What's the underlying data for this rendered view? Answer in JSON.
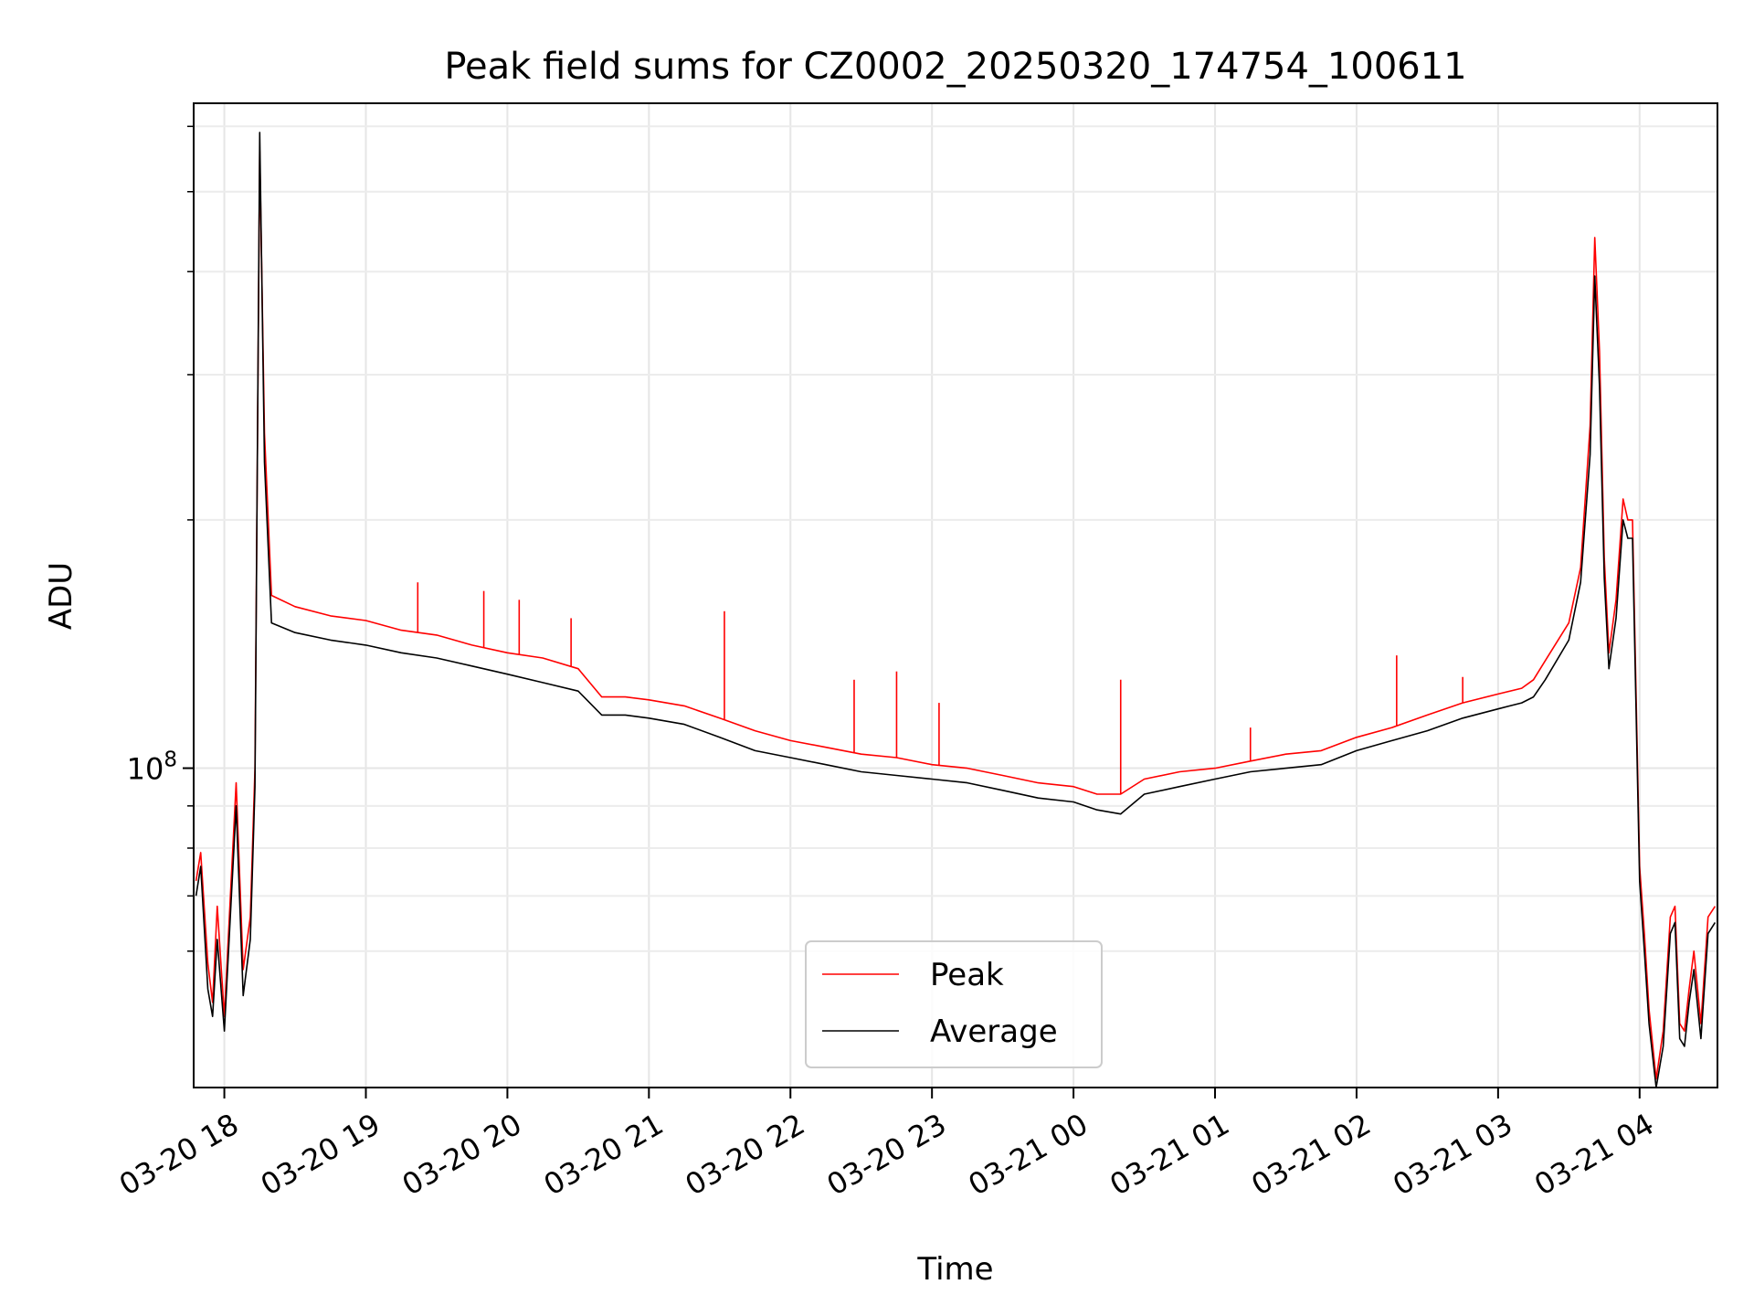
{
  "chart_data": {
    "type": "line",
    "title": "Peak field sums for CZ0002_20250320_174754_100611",
    "xlabel": "Time",
    "ylabel": "ADU",
    "x_tick_labels": [
      "03-20 18",
      "03-20 19",
      "03-20 20",
      "03-20 21",
      "03-20 22",
      "03-20 23",
      "03-21 00",
      "03-21 01",
      "03-21 02",
      "03-21 03",
      "03-21 04"
    ],
    "x_ticks": [
      "2025-03-20 18:00",
      "2025-03-20 19:00",
      "2025-03-20 20:00",
      "2025-03-20 21:00",
      "2025-03-20 22:00",
      "2025-03-20 23:00",
      "2025-03-21 00:00",
      "2025-03-21 01:00",
      "2025-03-21 02:00",
      "2025-03-21 03:00",
      "2025-03-21 04:00"
    ],
    "xlim": [
      "2025-03-20 17:47",
      "2025-03-21 04:33"
    ],
    "y_scale": "log",
    "ylim": [
      41000000,
      640000000
    ],
    "y_major_ticks": [
      {
        "value": 100000000,
        "base": "10",
        "exp": "8"
      }
    ],
    "y_minor_ticks": [
      60000000,
      70000000,
      80000000,
      90000000,
      200000000,
      300000000,
      400000000,
      500000000,
      600000000
    ],
    "grid": true,
    "legend": {
      "position": "bottom-center"
    },
    "series": [
      {
        "name": "Peak",
        "color": "#ff0000",
        "points": [
          [
            "2025-03-20 17:48",
            73000000
          ],
          [
            "2025-03-20 17:50",
            79000000
          ],
          [
            "2025-03-20 17:53",
            58000000
          ],
          [
            "2025-03-20 17:55",
            52000000
          ],
          [
            "2025-03-20 17:57",
            68000000
          ],
          [
            "2025-03-20 18:00",
            50000000
          ],
          [
            "2025-03-20 18:03",
            74000000
          ],
          [
            "2025-03-20 18:05",
            96000000
          ],
          [
            "2025-03-20 18:08",
            57000000
          ],
          [
            "2025-03-20 18:11",
            66000000
          ],
          [
            "2025-03-20 18:13",
            100000000
          ],
          [
            "2025-03-20 18:15",
            560000000
          ],
          [
            "2025-03-20 18:17",
            255000000
          ],
          [
            "2025-03-20 18:20",
            162000000
          ],
          [
            "2025-03-20 18:30",
            157000000
          ],
          [
            "2025-03-20 18:45",
            153000000
          ],
          [
            "2025-03-20 19:00",
            151000000
          ],
          [
            "2025-03-20 19:15",
            147000000
          ],
          [
            "2025-03-20 19:30",
            145000000
          ],
          [
            "2025-03-20 19:45",
            141000000
          ],
          [
            "2025-03-20 20:00",
            138000000
          ],
          [
            "2025-03-20 20:15",
            136000000
          ],
          [
            "2025-03-20 20:30",
            132000000
          ],
          [
            "2025-03-20 20:40",
            122000000
          ],
          [
            "2025-03-20 20:50",
            122000000
          ],
          [
            "2025-03-20 21:00",
            121000000
          ],
          [
            "2025-03-20 21:15",
            119000000
          ],
          [
            "2025-03-20 21:30",
            115000000
          ],
          [
            "2025-03-20 21:45",
            111000000
          ],
          [
            "2025-03-20 22:00",
            108000000
          ],
          [
            "2025-03-20 22:15",
            106000000
          ],
          [
            "2025-03-20 22:30",
            104000000
          ],
          [
            "2025-03-20 22:45",
            103000000
          ],
          [
            "2025-03-20 23:00",
            101000000
          ],
          [
            "2025-03-20 23:15",
            100000000
          ],
          [
            "2025-03-20 23:30",
            98000000
          ],
          [
            "2025-03-20 23:45",
            96000000
          ],
          [
            "2025-03-21 00:00",
            95000000
          ],
          [
            "2025-03-21 00:10",
            93000000
          ],
          [
            "2025-03-21 00:20",
            93000000
          ],
          [
            "2025-03-21 00:30",
            97000000
          ],
          [
            "2025-03-21 00:45",
            99000000
          ],
          [
            "2025-03-21 01:00",
            100000000
          ],
          [
            "2025-03-21 01:15",
            102000000
          ],
          [
            "2025-03-21 01:30",
            104000000
          ],
          [
            "2025-03-21 01:45",
            105000000
          ],
          [
            "2025-03-21 02:00",
            109000000
          ],
          [
            "2025-03-21 02:15",
            112000000
          ],
          [
            "2025-03-21 02:30",
            116000000
          ],
          [
            "2025-03-21 02:45",
            120000000
          ],
          [
            "2025-03-21 03:00",
            123000000
          ],
          [
            "2025-03-21 03:10",
            125000000
          ],
          [
            "2025-03-21 03:15",
            128000000
          ],
          [
            "2025-03-21 03:20",
            135000000
          ],
          [
            "2025-03-21 03:30",
            150000000
          ],
          [
            "2025-03-21 03:35",
            175000000
          ],
          [
            "2025-03-21 03:39",
            260000000
          ],
          [
            "2025-03-21 03:41",
            440000000
          ],
          [
            "2025-03-21 03:43",
            320000000
          ],
          [
            "2025-03-21 03:45",
            180000000
          ],
          [
            "2025-03-21 03:47",
            138000000
          ],
          [
            "2025-03-21 03:50",
            160000000
          ],
          [
            "2025-03-21 03:53",
            212000000
          ],
          [
            "2025-03-21 03:55",
            200000000
          ],
          [
            "2025-03-21 03:57",
            200000000
          ],
          [
            "2025-03-21 04:00",
            76000000
          ],
          [
            "2025-03-21 04:02",
            63000000
          ],
          [
            "2025-03-21 04:04",
            51000000
          ],
          [
            "2025-03-21 04:07",
            42000000
          ],
          [
            "2025-03-21 04:10",
            48000000
          ],
          [
            "2025-03-21 04:13",
            66000000
          ],
          [
            "2025-03-21 04:15",
            68000000
          ],
          [
            "2025-03-21 04:17",
            49000000
          ],
          [
            "2025-03-21 04:19",
            48000000
          ],
          [
            "2025-03-21 04:21",
            54000000
          ],
          [
            "2025-03-21 04:23",
            60000000
          ],
          [
            "2025-03-21 04:26",
            49000000
          ],
          [
            "2025-03-21 04:29",
            66000000
          ],
          [
            "2025-03-21 04:32",
            68000000
          ]
        ],
        "spikes": [
          [
            "2025-03-20 19:22",
            168000000
          ],
          [
            "2025-03-20 19:50",
            164000000
          ],
          [
            "2025-03-20 20:05",
            160000000
          ],
          [
            "2025-03-20 20:27",
            152000000
          ],
          [
            "2025-03-20 21:32",
            155000000
          ],
          [
            "2025-03-20 22:27",
            128000000
          ],
          [
            "2025-03-20 22:45",
            131000000
          ],
          [
            "2025-03-20 23:03",
            120000000
          ],
          [
            "2025-03-21 00:20",
            128000000
          ],
          [
            "2025-03-21 01:15",
            112000000
          ],
          [
            "2025-03-21 02:17",
            137000000
          ],
          [
            "2025-03-21 02:45",
            129000000
          ]
        ]
      },
      {
        "name": "Average",
        "color": "#000000",
        "points": [
          [
            "2025-03-20 17:48",
            70000000
          ],
          [
            "2025-03-20 17:50",
            76000000
          ],
          [
            "2025-03-20 17:53",
            54000000
          ],
          [
            "2025-03-20 17:55",
            50000000
          ],
          [
            "2025-03-20 17:57",
            62000000
          ],
          [
            "2025-03-20 18:00",
            48000000
          ],
          [
            "2025-03-20 18:03",
            70000000
          ],
          [
            "2025-03-20 18:05",
            90000000
          ],
          [
            "2025-03-20 18:08",
            53000000
          ],
          [
            "2025-03-20 18:11",
            62000000
          ],
          [
            "2025-03-20 18:13",
            95000000
          ],
          [
            "2025-03-20 18:15",
            590000000
          ],
          [
            "2025-03-20 18:17",
            235000000
          ],
          [
            "2025-03-20 18:20",
            150000000
          ],
          [
            "2025-03-20 18:30",
            146000000
          ],
          [
            "2025-03-20 18:45",
            143000000
          ],
          [
            "2025-03-20 19:00",
            141000000
          ],
          [
            "2025-03-20 19:15",
            138000000
          ],
          [
            "2025-03-20 19:30",
            136000000
          ],
          [
            "2025-03-20 19:45",
            133000000
          ],
          [
            "2025-03-20 20:00",
            130000000
          ],
          [
            "2025-03-20 20:15",
            127000000
          ],
          [
            "2025-03-20 20:30",
            124000000
          ],
          [
            "2025-03-20 20:40",
            116000000
          ],
          [
            "2025-03-20 20:50",
            116000000
          ],
          [
            "2025-03-20 21:00",
            115000000
          ],
          [
            "2025-03-20 21:15",
            113000000
          ],
          [
            "2025-03-20 21:30",
            109000000
          ],
          [
            "2025-03-20 21:45",
            105000000
          ],
          [
            "2025-03-20 22:00",
            103000000
          ],
          [
            "2025-03-20 22:15",
            101000000
          ],
          [
            "2025-03-20 22:30",
            99000000
          ],
          [
            "2025-03-20 22:45",
            98000000
          ],
          [
            "2025-03-20 23:00",
            97000000
          ],
          [
            "2025-03-20 23:15",
            96000000
          ],
          [
            "2025-03-20 23:30",
            94000000
          ],
          [
            "2025-03-20 23:45",
            92000000
          ],
          [
            "2025-03-21 00:00",
            91000000
          ],
          [
            "2025-03-21 00:10",
            89000000
          ],
          [
            "2025-03-21 00:20",
            88000000
          ],
          [
            "2025-03-21 00:30",
            93000000
          ],
          [
            "2025-03-21 00:45",
            95000000
          ],
          [
            "2025-03-21 01:00",
            97000000
          ],
          [
            "2025-03-21 01:15",
            99000000
          ],
          [
            "2025-03-21 01:30",
            100000000
          ],
          [
            "2025-03-21 01:45",
            101000000
          ],
          [
            "2025-03-21 02:00",
            105000000
          ],
          [
            "2025-03-21 02:15",
            108000000
          ],
          [
            "2025-03-21 02:30",
            111000000
          ],
          [
            "2025-03-21 02:45",
            115000000
          ],
          [
            "2025-03-21 03:00",
            118000000
          ],
          [
            "2025-03-21 03:10",
            120000000
          ],
          [
            "2025-03-21 03:15",
            122000000
          ],
          [
            "2025-03-21 03:20",
            128000000
          ],
          [
            "2025-03-21 03:30",
            143000000
          ],
          [
            "2025-03-21 03:35",
            168000000
          ],
          [
            "2025-03-21 03:39",
            240000000
          ],
          [
            "2025-03-21 03:41",
            395000000
          ],
          [
            "2025-03-21 03:43",
            290000000
          ],
          [
            "2025-03-21 03:45",
            170000000
          ],
          [
            "2025-03-21 03:47",
            132000000
          ],
          [
            "2025-03-21 03:50",
            152000000
          ],
          [
            "2025-03-21 03:53",
            200000000
          ],
          [
            "2025-03-21 03:55",
            190000000
          ],
          [
            "2025-03-21 03:57",
            190000000
          ],
          [
            "2025-03-21 04:00",
            73000000
          ],
          [
            "2025-03-21 04:02",
            60000000
          ],
          [
            "2025-03-21 04:04",
            49000000
          ],
          [
            "2025-03-21 04:07",
            41000000
          ],
          [
            "2025-03-21 04:10",
            46000000
          ],
          [
            "2025-03-21 04:13",
            63000000
          ],
          [
            "2025-03-21 04:15",
            65000000
          ],
          [
            "2025-03-21 04:17",
            47000000
          ],
          [
            "2025-03-21 04:19",
            46000000
          ],
          [
            "2025-03-21 04:21",
            52000000
          ],
          [
            "2025-03-21 04:23",
            57000000
          ],
          [
            "2025-03-21 04:26",
            47000000
          ],
          [
            "2025-03-21 04:29",
            63000000
          ],
          [
            "2025-03-21 04:32",
            65000000
          ]
        ]
      }
    ]
  }
}
